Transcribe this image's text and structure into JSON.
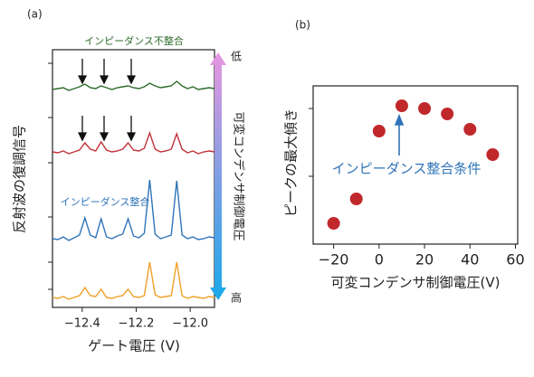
{
  "chart_data": [
    {
      "type": "line",
      "panel_label": "(a)",
      "x_label": "ゲート電圧 (V)",
      "y_label": "反射波の復調信号",
      "x": [
        -12.51,
        -12.49,
        -12.47,
        -12.45,
        -12.43,
        -12.41,
        -12.39,
        -12.37,
        -12.35,
        -12.33,
        -12.31,
        -12.29,
        -12.27,
        -12.25,
        -12.23,
        -12.21,
        -12.19,
        -12.17,
        -12.15,
        -12.13,
        -12.11,
        -12.09,
        -12.07,
        -12.05,
        -12.03,
        -12.01,
        -11.99,
        -11.97,
        -11.95,
        -11.93,
        -11.91
      ],
      "series": [
        {
          "color": "#f0a02a",
          "values": [
            1.1,
            1.0,
            1.2,
            0.9,
            1.1,
            1.3,
            2.2,
            1.3,
            1.2,
            2.0,
            1.1,
            1.0,
            1.2,
            1.3,
            2.0,
            1.2,
            1.1,
            1.3,
            5.0,
            1.4,
            1.1,
            1.2,
            1.3,
            5.0,
            1.3,
            1.0,
            1.2,
            1.1,
            1.0,
            1.2,
            1.1
          ]
        },
        {
          "color": "#2f74b8",
          "values": [
            7.6,
            7.5,
            7.8,
            7.4,
            7.7,
            8.0,
            9.9,
            8.0,
            7.7,
            9.8,
            7.8,
            7.6,
            7.9,
            8.1,
            9.8,
            7.9,
            7.7,
            8.2,
            14.1,
            8.1,
            7.6,
            7.8,
            8.0,
            14.0,
            8.0,
            7.6,
            7.8,
            7.5,
            7.6,
            7.8,
            7.7
          ]
        },
        {
          "color": "#c1333a",
          "values": [
            17.2,
            17.1,
            17.3,
            17.0,
            17.2,
            17.4,
            18.2,
            17.5,
            17.3,
            18.3,
            17.4,
            17.2,
            17.3,
            17.5,
            18.2,
            17.4,
            17.3,
            17.6,
            19.3,
            17.5,
            17.2,
            17.3,
            17.5,
            19.2,
            17.5,
            17.1,
            17.3,
            17.0,
            17.2,
            17.3,
            17.2
          ]
        },
        {
          "color": "#2e6b2a",
          "values": [
            24.1,
            24.2,
            24.3,
            24.0,
            24.2,
            24.4,
            24.7,
            24.3,
            24.2,
            24.5,
            24.3,
            24.1,
            24.3,
            24.4,
            24.5,
            24.3,
            24.2,
            24.4,
            24.8,
            24.5,
            24.3,
            24.4,
            24.5,
            25.0,
            24.5,
            24.2,
            24.4,
            24.1,
            24.2,
            24.3,
            24.2
          ]
        }
      ],
      "xlim": [
        -12.51,
        -11.91
      ],
      "xticks": [
        {
          "value": -12.4,
          "label": "−12.4"
        },
        {
          "value": -12.2,
          "label": "−12.2"
        },
        {
          "value": -12.0,
          "label": "−12.0"
        }
      ],
      "ylim": [
        0,
        28.5
      ],
      "yticks": [
        2,
        5,
        10,
        16,
        21,
        27
      ],
      "annotations": {
        "mismatch": "インピーダンス不整合",
        "match": "インピーダンス整合",
        "low": "低",
        "high": "高",
        "colorbar_label": "可変コンデンサ制御電圧"
      }
    },
    {
      "type": "scatter",
      "panel_label": "(b)",
      "x_label": "可変コンデンサ制御電圧(V)",
      "y_label": "ピークの最大傾き",
      "x": [
        -20,
        -10,
        0,
        10,
        20,
        30,
        40,
        50
      ],
      "values": [
        0.23,
        0.5,
        1.25,
        1.53,
        1.5,
        1.44,
        1.27,
        0.99
      ],
      "color": "#c0282c",
      "xlim": [
        -29,
        61
      ],
      "xticks": [
        {
          "value": -20,
          "label": "−20"
        },
        0,
        20,
        40,
        60
      ],
      "ylim": [
        0,
        1.75
      ],
      "yticks": [
        0.75,
        1.5
      ],
      "annotations": {
        "match": "インピーダンス整合条件"
      }
    }
  ]
}
